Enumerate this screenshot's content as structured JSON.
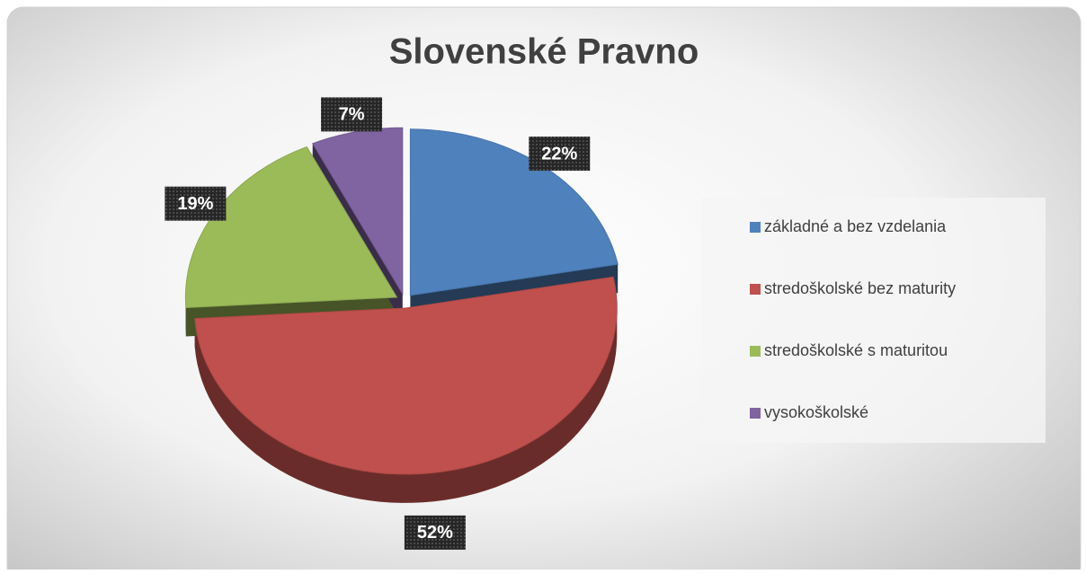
{
  "chart_data": {
    "type": "pie",
    "title": "Slovenské Pravno",
    "categories": [
      "základné a bez vzdelania",
      "stredoškolské bez maturity",
      "stredoškolské s maturitou",
      "vysokoškolské"
    ],
    "values": [
      22,
      52,
      19,
      7
    ],
    "value_labels": [
      "22%",
      "52%",
      "19%",
      "7%"
    ],
    "colors": [
      "#4f81bd",
      "#c0504d",
      "#9bbb59",
      "#8064a2"
    ],
    "legend": "right"
  }
}
